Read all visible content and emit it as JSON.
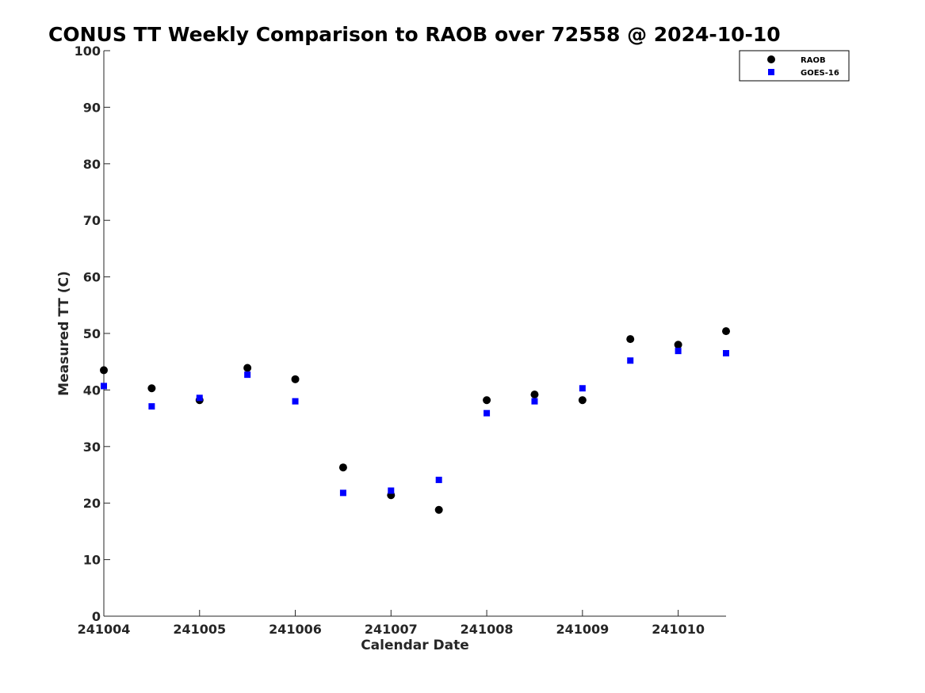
{
  "chart_data": {
    "type": "scatter",
    "title": "CONUS TT Weekly Comparison to RAOB over 72558 @ 2024-10-10",
    "xlabel": "Calendar Date",
    "ylabel": "Measured TT (C)",
    "x_ticks": [
      "241004",
      "241005",
      "241006",
      "241007",
      "241008",
      "241009",
      "241010"
    ],
    "x_tick_values": [
      0,
      1,
      2,
      3,
      4,
      5,
      6
    ],
    "xlim": [
      0,
      6.5
    ],
    "ylim": [
      0,
      100
    ],
    "y_ticks": [
      0,
      10,
      20,
      30,
      40,
      50,
      60,
      70,
      80,
      90,
      100
    ],
    "grid": false,
    "legend_position": "top-right",
    "x": [
      0,
      0.5,
      1,
      1.5,
      2,
      2.5,
      3,
      3.5,
      4,
      4.5,
      5,
      5.5,
      6,
      6.5
    ],
    "series": [
      {
        "name": "RAOB",
        "marker": "circle",
        "color": "#000000",
        "values": [
          43.5,
          40.3,
          38.2,
          43.9,
          41.9,
          26.3,
          21.4,
          18.8,
          38.2,
          39.2,
          38.2,
          49.0,
          48.0,
          50.4
        ]
      },
      {
        "name": "GOES-16",
        "marker": "square",
        "color": "#0000ff",
        "values": [
          40.7,
          37.1,
          38.6,
          42.7,
          38.0,
          21.8,
          22.2,
          24.1,
          35.9,
          38.0,
          40.3,
          45.2,
          46.9,
          46.5
        ]
      }
    ]
  }
}
